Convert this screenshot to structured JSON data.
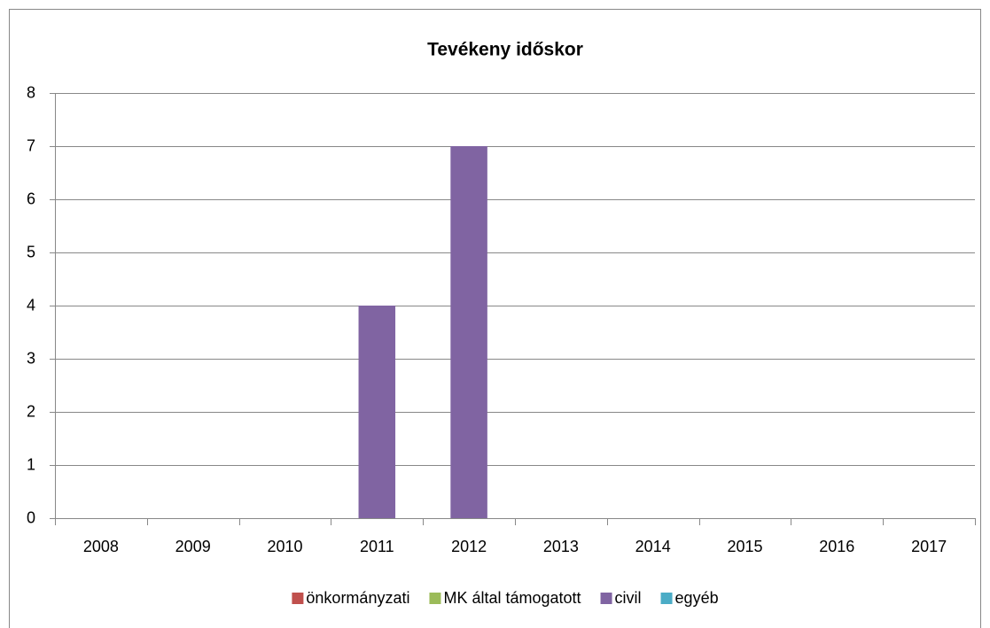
{
  "chart_data": {
    "type": "bar",
    "stacked": true,
    "title": "Tevékeny időskor",
    "categories": [
      "2008",
      "2009",
      "2010",
      "2011",
      "2012",
      "2013",
      "2014",
      "2015",
      "2016",
      "2017"
    ],
    "series": [
      {
        "name": "önkormányzati",
        "color": "#c0504d",
        "values": [
          0,
          0,
          0,
          0,
          0,
          0,
          0,
          0,
          0,
          0
        ]
      },
      {
        "name": "MK által támogatott",
        "color": "#9bbb59",
        "values": [
          0,
          0,
          0,
          0,
          0,
          0,
          0,
          0,
          0,
          0
        ]
      },
      {
        "name": "civil",
        "color": "#8064a2",
        "values": [
          0,
          0,
          0,
          4,
          7,
          0,
          0,
          0,
          0,
          0
        ]
      },
      {
        "name": "egyéb",
        "color": "#4bacc6",
        "values": [
          0,
          0,
          0,
          0,
          0,
          0,
          0,
          0,
          0,
          0
        ]
      }
    ],
    "ylim": [
      0,
      8
    ],
    "yticks": [
      0,
      1,
      2,
      3,
      4,
      5,
      6,
      7,
      8
    ],
    "grid": true,
    "legend": "bottom"
  }
}
